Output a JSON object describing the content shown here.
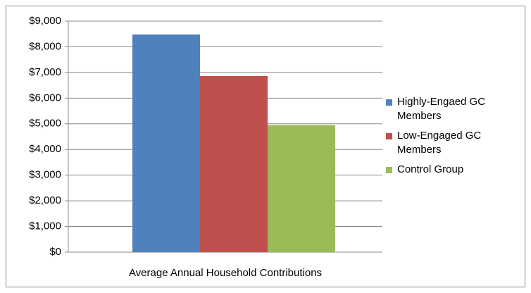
{
  "chart_data": {
    "type": "bar",
    "categories": [
      "Average Annual Household Contributions"
    ],
    "series": [
      {
        "name": "Highly-Engaed GC Members",
        "color": "#4f81bd",
        "values": [
          8480
        ]
      },
      {
        "name": "Low-Engaged GC Members",
        "color": "#c0504d",
        "values": [
          6860
        ]
      },
      {
        "name": "Control Group",
        "color": "#9bbb59",
        "values": [
          4950
        ]
      }
    ],
    "ylim": [
      0,
      9000
    ],
    "yticks": [
      {
        "value": 0,
        "label": "$0"
      },
      {
        "value": 1000,
        "label": "$1,000"
      },
      {
        "value": 2000,
        "label": "$2,000"
      },
      {
        "value": 3000,
        "label": "$3,000"
      },
      {
        "value": 4000,
        "label": "$4,000"
      },
      {
        "value": 5000,
        "label": "$5,000"
      },
      {
        "value": 6000,
        "label": "$6,000"
      },
      {
        "value": 7000,
        "label": "$7,000"
      },
      {
        "value": 8000,
        "label": "$8,000"
      },
      {
        "value": 9000,
        "label": "$9,000"
      }
    ],
    "grid": true,
    "legend": "right"
  }
}
